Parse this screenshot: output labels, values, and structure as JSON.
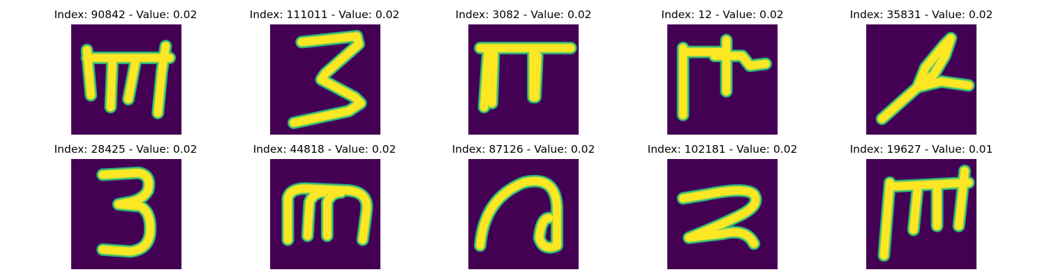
{
  "colors": {
    "background": "#440154",
    "stroke_core": "#fde725",
    "stroke_edge": "#22a884",
    "stroke_mid": "#7ad151"
  },
  "panels": [
    {
      "title": "Index: 90842 - Value: 0.02",
      "glyph": "m-with-bar"
    },
    {
      "title": "Index: 111011 - Value: 0.02",
      "glyph": "three-angular"
    },
    {
      "title": "Index: 3082 - Value: 0.02",
      "glyph": "pi-thick"
    },
    {
      "title": "Index: 12 - Value: 0.02",
      "glyph": "pi-with-stub"
    },
    {
      "title": "Index: 35831 - Value: 0.02",
      "glyph": "loop-diagonal"
    },
    {
      "title": "Index: 28425 - Value: 0.02",
      "glyph": "three-round"
    },
    {
      "title": "Index: 44818 - Value: 0.02",
      "glyph": "m-rounded"
    },
    {
      "title": "Index: 87126 - Value: 0.02",
      "glyph": "a-curl"
    },
    {
      "title": "Index: 102181 - Value: 0.02",
      "glyph": "two-curved"
    },
    {
      "title": "Index: 19627 - Value: 0.01",
      "glyph": "m-with-bar-2"
    }
  ]
}
